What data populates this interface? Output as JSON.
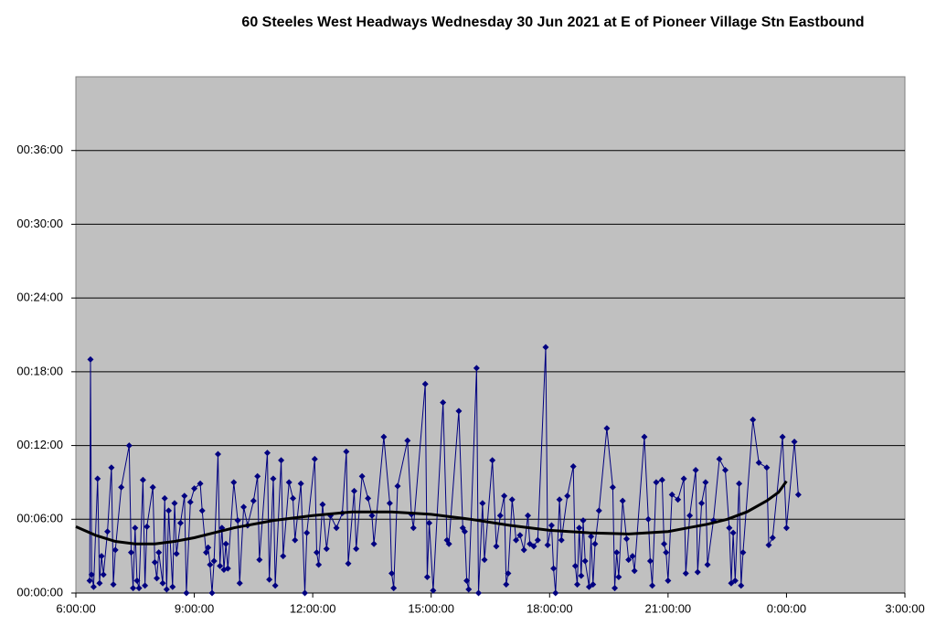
{
  "chart_data": {
    "type": "line",
    "title": "60 Steeles West Headways Wednesday 30 Jun 2021 at E of Pioneer Village Stn Eastbound",
    "xlim": [
      6,
      27
    ],
    "xticks": [
      {
        "value": 6,
        "label": "6:00:00"
      },
      {
        "value": 9,
        "label": "9:00:00"
      },
      {
        "value": 12,
        "label": "12:00:00"
      },
      {
        "value": 15,
        "label": "15:00:00"
      },
      {
        "value": 18,
        "label": "18:00:00"
      },
      {
        "value": 21,
        "label": "21:00:00"
      },
      {
        "value": 24,
        "label": "0:00:00"
      },
      {
        "value": 27,
        "label": "3:00:00"
      }
    ],
    "ylim": [
      0,
      42
    ],
    "yticks": [
      {
        "value": 0,
        "label": "00:00:00"
      },
      {
        "value": 6,
        "label": "00:06:00"
      },
      {
        "value": 12,
        "label": "00:12:00"
      },
      {
        "value": 18,
        "label": "00:18:00"
      },
      {
        "value": 24,
        "label": "00:24:00"
      },
      {
        "value": 30,
        "label": "00:30:00"
      },
      {
        "value": 36,
        "label": "00:36:00"
      }
    ],
    "grid": true,
    "series": [
      {
        "color": "#000080",
        "marker": "diamond",
        "x": [
          6.35,
          6.37,
          6.4,
          6.45,
          6.55,
          6.6,
          6.65,
          6.7,
          6.8,
          6.9,
          6.95,
          7.0,
          7.15,
          7.35,
          7.4,
          7.45,
          7.5,
          7.55,
          7.6,
          7.7,
          7.75,
          7.8,
          7.95,
          8.0,
          8.05,
          8.1,
          8.2,
          8.25,
          8.3,
          8.35,
          8.45,
          8.5,
          8.55,
          8.65,
          8.75,
          8.8,
          8.9,
          9.0,
          9.15,
          9.2,
          9.3,
          9.35,
          9.4,
          9.45,
          9.5,
          9.6,
          9.65,
          9.7,
          9.75,
          9.8,
          9.85,
          10.0,
          10.1,
          10.15,
          10.25,
          10.35,
          10.5,
          10.6,
          10.65,
          10.85,
          10.9,
          11.0,
          11.05,
          11.2,
          11.25,
          11.4,
          11.5,
          11.55,
          11.7,
          11.8,
          11.85,
          12.05,
          12.1,
          12.15,
          12.25,
          12.35,
          12.45,
          12.6,
          12.75,
          12.85,
          12.9,
          13.05,
          13.1,
          13.25,
          13.4,
          13.5,
          13.55,
          13.8,
          13.95,
          14.0,
          14.05,
          14.15,
          14.4,
          14.5,
          14.55,
          14.85,
          14.9,
          14.95,
          15.05,
          15.3,
          15.4,
          15.45,
          15.7,
          15.8,
          15.85,
          15.9,
          15.95,
          16.15,
          16.2,
          16.3,
          16.35,
          16.55,
          16.65,
          16.75,
          16.85,
          16.9,
          16.95,
          17.05,
          17.15,
          17.25,
          17.35,
          17.45,
          17.5,
          17.6,
          17.7,
          17.9,
          17.95,
          18.05,
          18.1,
          18.15,
          18.25,
          18.3,
          18.45,
          18.6,
          18.65,
          18.7,
          18.75,
          18.8,
          18.85,
          18.9,
          19.0,
          19.05,
          19.1,
          19.15,
          19.25,
          19.45,
          19.6,
          19.65,
          19.7,
          19.75,
          19.85,
          19.95,
          20.0,
          20.1,
          20.15,
          20.4,
          20.5,
          20.55,
          20.6,
          20.7,
          20.85,
          20.9,
          20.95,
          21.0,
          21.1,
          21.25,
          21.4,
          21.45,
          21.55,
          21.7,
          21.75,
          21.85,
          21.95,
          22.0,
          22.15,
          22.3,
          22.45,
          22.55,
          22.6,
          22.65,
          22.7,
          22.8,
          22.85,
          22.9,
          23.15,
          23.3,
          23.5,
          23.55,
          23.65,
          23.9,
          24.0,
          24.2,
          24.3
        ],
        "values": [
          1.0,
          19.0,
          1.5,
          0.5,
          9.3,
          0.8,
          3.0,
          1.5,
          5.0,
          10.2,
          0.7,
          3.5,
          8.6,
          12.0,
          3.3,
          0.4,
          5.3,
          1.0,
          0.4,
          9.2,
          0.6,
          5.4,
          8.6,
          2.5,
          1.2,
          3.3,
          0.8,
          7.7,
          0.3,
          6.7,
          0.5,
          7.3,
          3.2,
          5.7,
          7.9,
          0.0,
          7.4,
          8.5,
          8.9,
          6.7,
          3.3,
          3.7,
          2.3,
          0.0,
          2.6,
          11.3,
          2.2,
          5.3,
          1.9,
          4.0,
          2.0,
          9.0,
          5.9,
          0.8,
          7.0,
          5.5,
          7.5,
          9.5,
          2.7,
          11.4,
          1.1,
          9.3,
          0.6,
          10.8,
          3.0,
          9.0,
          7.7,
          4.3,
          8.9,
          0.0,
          4.9,
          10.9,
          3.3,
          2.3,
          7.2,
          3.6,
          6.3,
          5.3,
          6.5,
          11.5,
          2.4,
          8.3,
          3.6,
          9.5,
          7.7,
          6.3,
          4.0,
          12.7,
          7.3,
          1.6,
          0.4,
          8.7,
          12.4,
          6.4,
          5.3,
          17.0,
          1.3,
          5.7,
          0.2,
          15.5,
          4.3,
          4.0,
          14.8,
          5.3,
          5.0,
          1.0,
          0.3,
          18.3,
          0.0,
          7.3,
          2.7,
          10.8,
          3.8,
          6.3,
          7.9,
          0.7,
          1.6,
          7.6,
          4.3,
          4.7,
          3.5,
          6.3,
          4.0,
          3.8,
          4.3,
          20.0,
          3.9,
          5.5,
          2.0,
          0.0,
          7.6,
          4.3,
          7.9,
          10.3,
          2.2,
          0.7,
          5.3,
          1.4,
          5.9,
          2.6,
          0.5,
          4.6,
          0.7,
          4.0,
          6.7,
          13.4,
          8.6,
          0.4,
          3.3,
          1.3,
          7.5,
          4.4,
          2.7,
          3.0,
          1.8,
          12.7,
          6.0,
          2.6,
          0.6,
          9.0,
          9.2,
          4.0,
          3.3,
          1.0,
          8.0,
          7.6,
          9.3,
          1.6,
          6.3,
          10.0,
          1.7,
          7.3,
          9.0,
          2.3,
          5.9,
          10.9,
          10.0,
          5.3,
          0.8,
          4.9,
          1.0,
          8.9,
          0.6,
          3.3,
          14.1,
          10.6,
          10.2,
          3.9,
          4.5,
          12.7,
          5.3,
          12.3,
          8.0
        ]
      },
      {
        "color": "#000000",
        "marker": "none",
        "x": [
          6,
          6.5,
          7,
          7.5,
          8,
          8.5,
          9,
          9.5,
          10,
          11,
          12,
          13,
          14,
          15,
          15.5,
          16,
          17,
          18,
          18.5,
          19,
          20,
          21,
          21.5,
          22,
          22.5,
          23,
          23.5,
          23.8,
          24
        ],
        "values": [
          5.4,
          4.7,
          4.2,
          4.0,
          4.0,
          4.2,
          4.5,
          4.9,
          5.3,
          5.9,
          6.3,
          6.6,
          6.6,
          6.4,
          6.2,
          6.0,
          5.5,
          5.1,
          5.0,
          4.9,
          4.8,
          5.0,
          5.3,
          5.6,
          6.0,
          6.6,
          7.5,
          8.2,
          9.1
        ]
      }
    ]
  }
}
